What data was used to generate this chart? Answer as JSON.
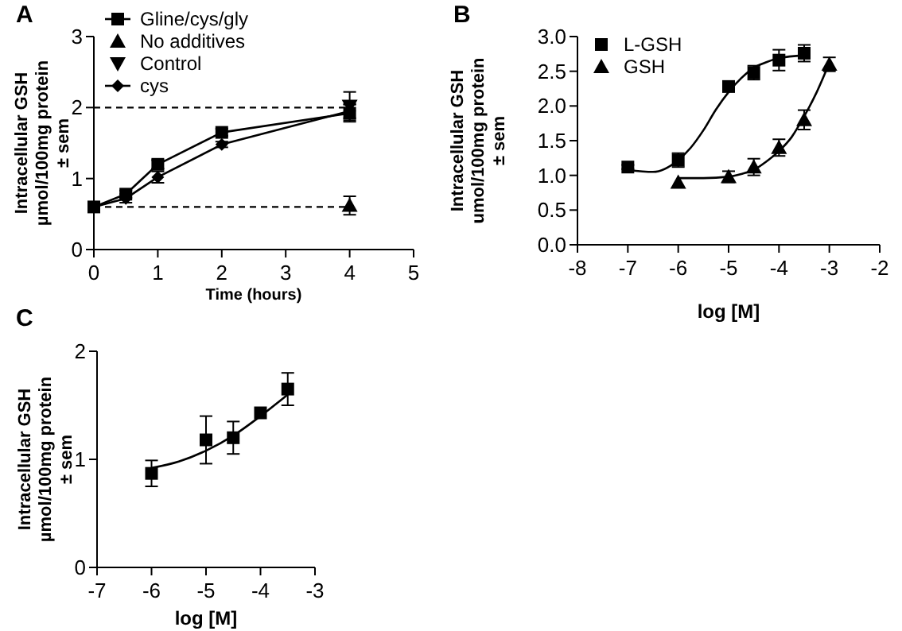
{
  "chart_data": [
    {
      "type": "line",
      "title": "A",
      "xlabel": "Time (hours)",
      "ylabel": "Intracellular GSH\nµmol/100mg protein\n± sem",
      "xlim": [
        0,
        5
      ],
      "ylim": [
        0,
        3
      ],
      "xticks": [
        0,
        1,
        2,
        3,
        4,
        5
      ],
      "yticks": [
        0,
        1,
        2,
        3
      ],
      "grid": false,
      "legend": "top left",
      "line_style": "solid",
      "ref_lines": [
        {
          "axis": "y",
          "value": 2,
          "line_style": "dashed",
          "color": "#000000"
        },
        {
          "axis": "y",
          "value": 0.6,
          "line_style": "dashed",
          "color": "#000000"
        }
      ],
      "series": [
        {
          "name": "Gline/cys/gly",
          "color": "#000000",
          "marker": "square",
          "x": [
            0,
            0.5,
            1,
            2,
            4
          ],
          "values": [
            0.6,
            0.78,
            1.2,
            1.65,
            1.92
          ],
          "errors": [
            null,
            0.05,
            0.06,
            0.05,
            0.12
          ]
        },
        {
          "name": "No additives",
          "type": "scatter",
          "color": "#000000",
          "marker": "triangle",
          "x": [
            4
          ],
          "values": [
            0.62
          ],
          "errors": [
            0.13
          ]
        },
        {
          "name": "Control",
          "type": "scatter",
          "color": "#000000",
          "marker": "triangle-down",
          "x": [
            4
          ],
          "values": [
            2.02
          ],
          "errors": [
            0.2
          ]
        },
        {
          "name": "cys",
          "color": "#000000",
          "marker": "diamond",
          "x": [
            0,
            0.5,
            1,
            2,
            4
          ],
          "values": [
            0.6,
            0.72,
            1.02,
            1.48,
            1.95
          ],
          "errors": [
            null,
            0.06,
            0.08,
            0.04,
            0.1
          ]
        }
      ]
    },
    {
      "type": "scatter",
      "title": "B",
      "xlabel": "log [M]",
      "ylabel": "Intracellular GSH\numol/100mg protein\n± sem",
      "xlim": [
        -8,
        -2
      ],
      "ylim": [
        0,
        3
      ],
      "xticks": [
        -8,
        -7,
        -6,
        -5,
        -4,
        -3,
        -2
      ],
      "yticks": [
        {
          "value": 0,
          "label": "0.0"
        },
        {
          "value": 0.5,
          "label": "0.5"
        },
        {
          "value": 1,
          "label": "1.0"
        },
        {
          "value": 1.5,
          "label": "1.5"
        },
        {
          "value": 2,
          "label": "2.0"
        },
        {
          "value": 2.5,
          "label": "2.5"
        },
        {
          "value": 3,
          "label": "3.0"
        }
      ],
      "grid": false,
      "legend": "top left",
      "series": [
        {
          "name": "L-GSH",
          "color": "#000000",
          "marker": "square",
          "x": [
            -7,
            -6,
            -5,
            -4.5,
            -4,
            -3.5
          ],
          "values": [
            1.12,
            1.22,
            2.28,
            2.48,
            2.66,
            2.76
          ],
          "errors": [
            0.03,
            0.1,
            0.03,
            0.1,
            0.15,
            0.12
          ]
        },
        {
          "name": "GSH",
          "color": "#000000",
          "marker": "triangle",
          "x": [
            -6,
            -5,
            -4.5,
            -4,
            -3.5,
            -3
          ],
          "values": [
            0.9,
            0.98,
            1.12,
            1.4,
            1.8,
            2.6
          ],
          "errors": [
            null,
            0.08,
            0.12,
            0.12,
            0.14,
            0.1
          ]
        },
        {
          "type": "line",
          "color": "#000000",
          "marker": "none",
          "x": [
            -7,
            -6.5,
            -6,
            -5.75,
            -5.5,
            -5.25,
            -5,
            -4.75,
            -4.5,
            -4.25,
            -4,
            -3.5
          ],
          "values": [
            1.08,
            1.05,
            1.22,
            1.4,
            1.65,
            1.95,
            2.2,
            2.4,
            2.55,
            2.63,
            2.69,
            2.73
          ]
        },
        {
          "type": "line",
          "color": "#000000",
          "marker": "none",
          "x": [
            -6,
            -5.5,
            -5,
            -4.75,
            -4.5,
            -4.25,
            -4,
            -3.75,
            -3.5,
            -3.25,
            -3
          ],
          "values": [
            0.96,
            0.96,
            0.98,
            1.02,
            1.08,
            1.2,
            1.35,
            1.55,
            1.85,
            2.2,
            2.62
          ]
        }
      ]
    },
    {
      "type": "scatter",
      "title": "C",
      "xlabel": "log [M]",
      "ylabel": "Intracellular GSH\nµmol/100mg protein\n± sem",
      "xlim": [
        -7,
        -3
      ],
      "ylim": [
        0,
        2
      ],
      "xticks": [
        -7,
        -6,
        -5,
        -4,
        -3
      ],
      "yticks": [
        0,
        1,
        2
      ],
      "grid": false,
      "legend": false,
      "series": [
        {
          "color": "#000000",
          "marker": "square",
          "x": [
            -6,
            -5,
            -4.5,
            -4,
            -3.5
          ],
          "values": [
            0.87,
            1.18,
            1.2,
            1.43,
            1.65
          ],
          "errors": [
            0.12,
            0.22,
            0.15,
            null,
            0.15
          ]
        },
        {
          "type": "line",
          "color": "#000000",
          "marker": "none",
          "x": [
            -6,
            -5.5,
            -5,
            -4.5,
            -4,
            -3.5
          ],
          "values": [
            0.92,
            0.98,
            1.08,
            1.22,
            1.4,
            1.6
          ]
        }
      ]
    }
  ]
}
